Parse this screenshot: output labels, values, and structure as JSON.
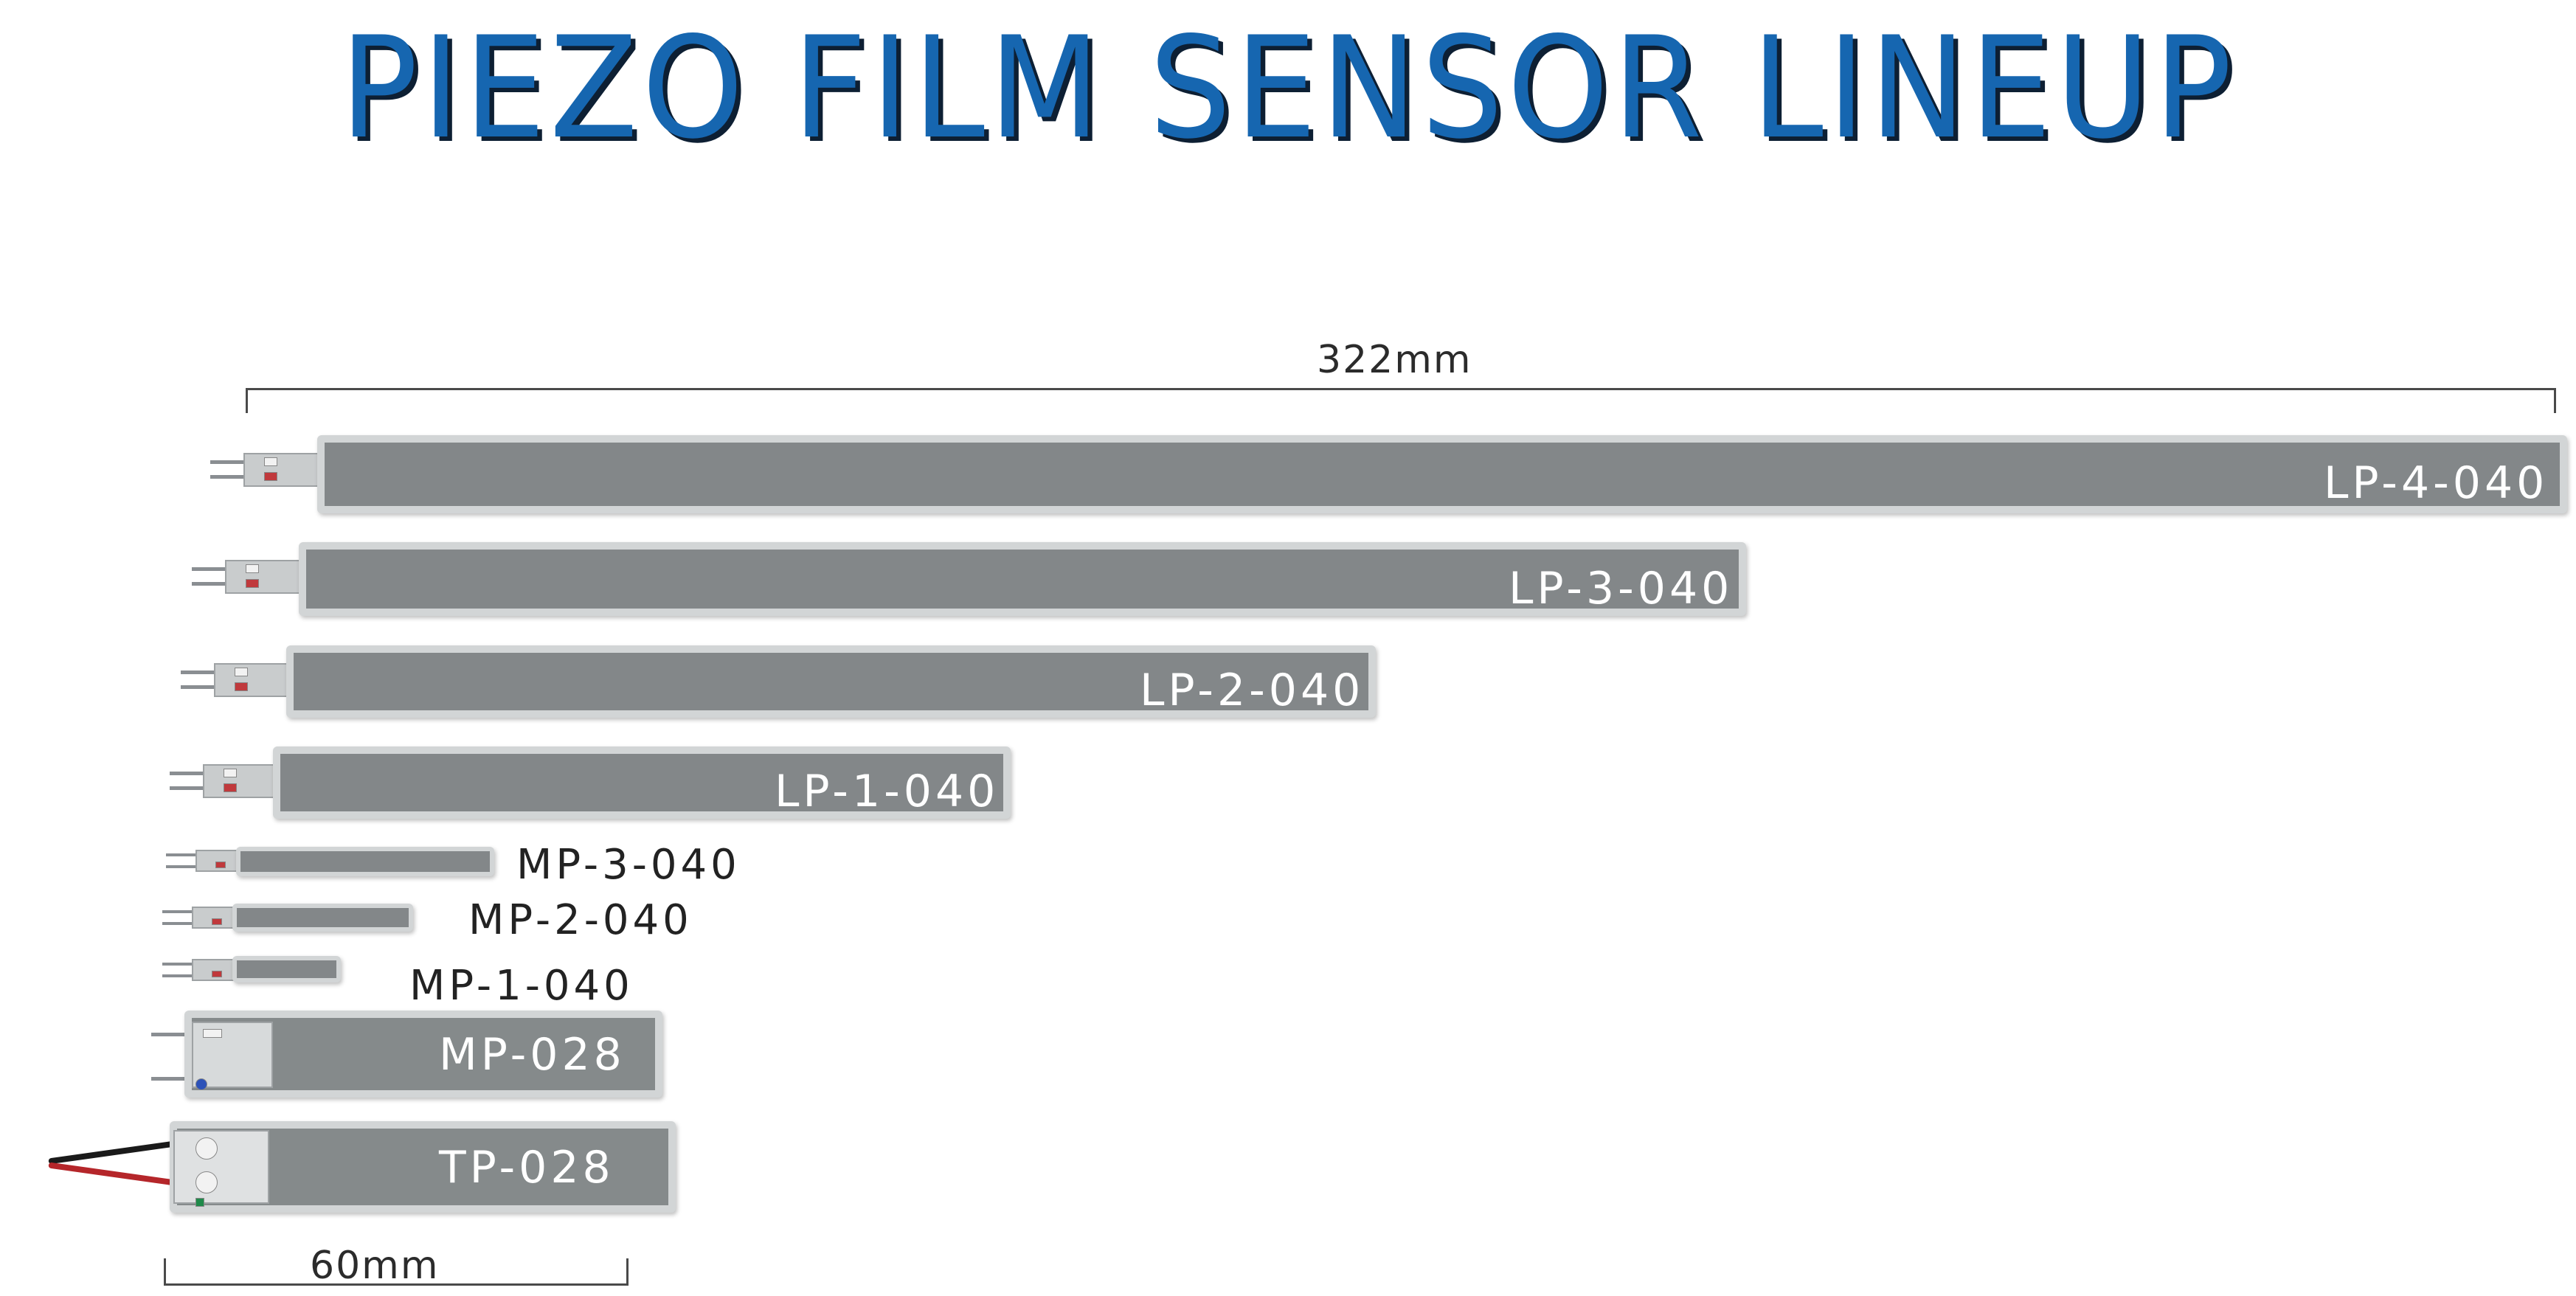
{
  "title": "PIEZO FILM SENSOR LINEUP",
  "dimensions": {
    "top_length": "322mm",
    "bottom_width": "60mm"
  },
  "sensors": [
    {
      "model": "LP-4-040"
    },
    {
      "model": "LP-3-040"
    },
    {
      "model": "LP-2-040"
    },
    {
      "model": "LP-1-040"
    },
    {
      "model": "MP-3-040"
    },
    {
      "model": "MP-2-040"
    },
    {
      "model": "MP-1-040"
    },
    {
      "model": "MP-028"
    },
    {
      "model": "TP-028"
    }
  ],
  "colors": {
    "title": "#1666b0",
    "title_shadow": "#0d1f33",
    "film": "#838789",
    "film_border": "#d2d5d6"
  }
}
